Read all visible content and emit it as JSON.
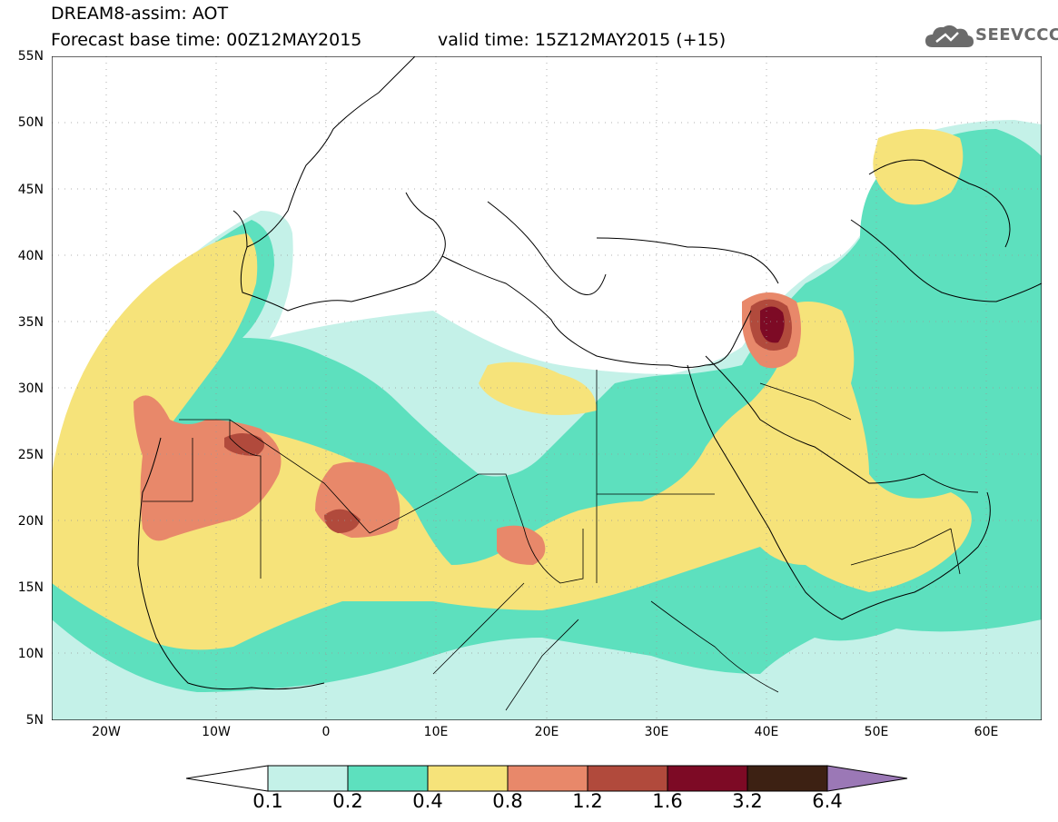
{
  "title": {
    "line1": "DREAM8-assim: AOT",
    "line2": "Forecast base time: 00Z12MAY2015",
    "valid": "valid time: 15Z12MAY2015 (+15)"
  },
  "logo": {
    "text": "SEEVCCC",
    "icon": "cloud-icon"
  },
  "map": {
    "lat_labels": [
      "55N",
      "50N",
      "45N",
      "40N",
      "35N",
      "30N",
      "25N",
      "20N",
      "15N",
      "10N",
      "5N"
    ],
    "lon_labels": [
      "20W",
      "10W",
      "0",
      "10E",
      "20E",
      "30E",
      "40E",
      "50E",
      "60E"
    ],
    "lat_range": [
      5,
      55
    ],
    "lon_range": [
      -25,
      65
    ],
    "grid": true
  },
  "colorbar": {
    "labels": [
      "0.1",
      "0.2",
      "0.4",
      "0.8",
      "1.2",
      "1.6",
      "3.2",
      "6.4"
    ],
    "colors": [
      "#ffffff",
      "#c4f1e8",
      "#5de0be",
      "#f6e37a",
      "#e8886a",
      "#b14a3c",
      "#7d0a25",
      "#3d2113",
      "#9b78b6"
    ]
  }
}
